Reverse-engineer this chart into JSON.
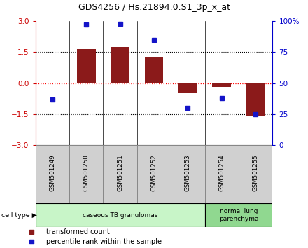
{
  "title": "GDS4256 / Hs.21894.0.S1_3p_x_at",
  "samples": [
    "GSM501249",
    "GSM501250",
    "GSM501251",
    "GSM501252",
    "GSM501253",
    "GSM501254",
    "GSM501255"
  ],
  "transformed_count": [
    0.0,
    1.65,
    1.75,
    1.25,
    -0.5,
    -0.2,
    -1.6
  ],
  "percentile_rank": [
    37,
    97,
    98,
    85,
    30,
    38,
    25
  ],
  "ylim_left": [
    -3,
    3
  ],
  "ylim_right": [
    0,
    100
  ],
  "yticks_left": [
    -3,
    -1.5,
    0,
    1.5,
    3
  ],
  "yticks_right": [
    0,
    25,
    50,
    75,
    100
  ],
  "yticklabels_right": [
    "0",
    "25",
    "50",
    "75",
    "100%"
  ],
  "bar_color": "#8B1A1A",
  "dot_color": "#1414C8",
  "bar_width": 0.55,
  "cell_type_groups": [
    {
      "label": "caseous TB granulomas",
      "start": 0,
      "end": 5,
      "color": "#c8f5c8"
    },
    {
      "label": "normal lung\nparenchyma",
      "start": 5,
      "end": 7,
      "color": "#90d890"
    }
  ],
  "cell_type_label": "cell type",
  "legend_items": [
    {
      "color": "#8B1A1A",
      "label": "transformed count"
    },
    {
      "color": "#1414C8",
      "label": "percentile rank within the sample"
    }
  ],
  "axis_color_left": "#CC0000",
  "axis_color_right": "#0000CC",
  "label_bg_color": "#d0d0d0",
  "label_border_color": "#888888"
}
